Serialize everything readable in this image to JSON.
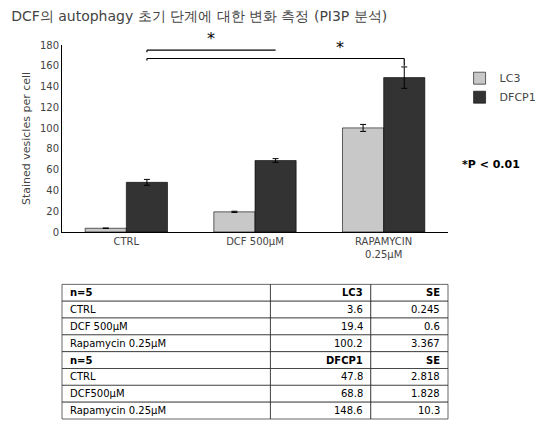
{
  "chart_data": {
    "type": "bar",
    "title": "DCF의 autophagy 초기 단계에 대한 변화 측정 (PI3P 분석)",
    "categories": [
      "CTRL",
      "DCF 500μM",
      "RAPAMYCIN\n0.25μM"
    ],
    "series": [
      {
        "name": "LC3",
        "color": "#C8C8C8",
        "values": [
          3.6,
          19.4,
          100.2
        ],
        "errors": [
          0.245,
          0.6,
          3.367
        ]
      },
      {
        "name": "DFCP1",
        "color": "#333333",
        "values": [
          47.8,
          68.8,
          148.6
        ],
        "errors": [
          2.818,
          1.828,
          10.3
        ]
      }
    ],
    "ylabel": "Stained vesicles per cell",
    "ylim": [
      0,
      180
    ],
    "yticks": [
      0,
      20,
      40,
      60,
      80,
      100,
      120,
      140,
      160,
      180
    ],
    "grid": false,
    "legend": "right",
    "brackets": [
      {
        "text": "*",
        "from": [
          0,
          1
        ],
        "to": [
          1,
          1
        ],
        "y": [
          173,
          175,
          175
        ]
      },
      {
        "text": "*",
        "from": [
          0,
          1
        ],
        "to": [
          2,
          1
        ],
        "y": [
          165,
          167,
          160
        ]
      }
    ],
    "annotations": [
      {
        "text": "*P < 0.01"
      }
    ],
    "table": [
      {
        "header": [
          "n=5",
          "LC3",
          "SE"
        ],
        "rows": [
          [
            "CTRL",
            "3.6",
            "0.245"
          ],
          [
            "DCF 500μM",
            "19.4",
            "0.6"
          ],
          [
            "Rapamycin 0.25μM",
            "100.2",
            "3.367"
          ]
        ]
      },
      {
        "header": [
          "n=5",
          "DFCP1",
          "SE"
        ],
        "rows": [
          [
            "CTRL",
            "47.8",
            "2.818"
          ],
          [
            "DCF500μM",
            "68.8",
            "1.828"
          ],
          [
            "Rapamycin 0.25μM",
            "148.6",
            "10.3"
          ]
        ]
      }
    ]
  }
}
